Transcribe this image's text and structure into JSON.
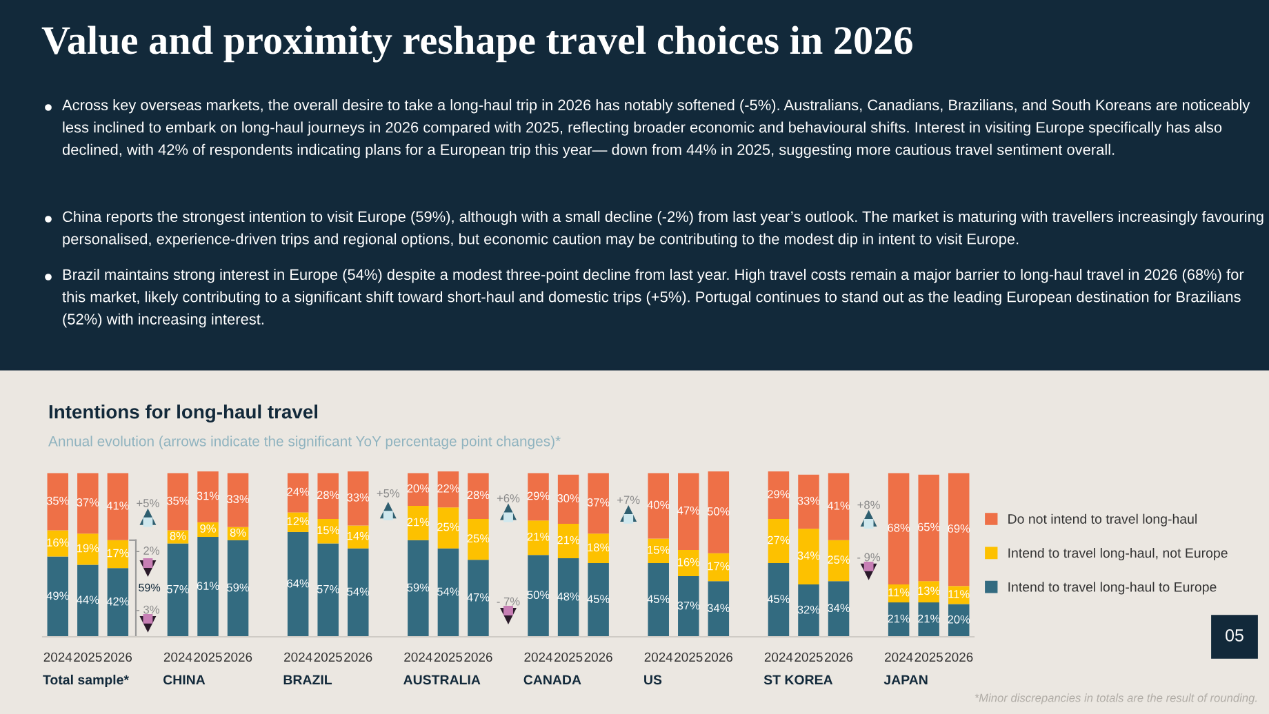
{
  "chart_data": {
    "type": "bar",
    "stacked": true,
    "title": "Value and proximity reshape travel choices in 2026",
    "subtitle": "Intentions for long-haul travel",
    "categories": [
      "2024",
      "2025",
      "2026",
      null,
      "2024",
      "2025",
      "2026",
      null,
      "2024",
      "2025",
      "2026",
      null,
      "2024",
      "2025",
      "2026",
      null,
      "2024",
      "2025",
      "2026",
      null,
      "2024",
      "2025",
      "2026",
      null,
      "2024",
      "2025",
      "2026",
      null,
      "2024",
      "2025",
      "2026"
    ],
    "series": [
      {
        "name": "Intend to travel long-haul to Europe",
        "color": "#336b80",
        "values": [
          49,
          44,
          42,
          null,
          57,
          61,
          59,
          null,
          64,
          57,
          54,
          null,
          59,
          54,
          47,
          null,
          50,
          48,
          45,
          null,
          45,
          37,
          34,
          null,
          45,
          32,
          34,
          null,
          21,
          21,
          20
        ],
        "value_labels": [
          "49%",
          "44%",
          "42%",
          null,
          "57%",
          "61%",
          "59%",
          null,
          "64%",
          "57%",
          "54%",
          null,
          "59%",
          "54%",
          "47%",
          null,
          "50%",
          "48%",
          "45%",
          null,
          "45%",
          "37%",
          "34%",
          null,
          "45%",
          "32%",
          "34%",
          null,
          "21%",
          "21%",
          "20%"
        ]
      },
      {
        "name": "Intend to travel long-haul, not Europe",
        "color": "#fdc100",
        "values": [
          16,
          19,
          17,
          null,
          8,
          9,
          8,
          null,
          12,
          15,
          14,
          null,
          21,
          25,
          25,
          null,
          21,
          21,
          18,
          null,
          15,
          16,
          17,
          null,
          27,
          34,
          25,
          null,
          11,
          13,
          11
        ],
        "value_labels": [
          "16%",
          "19%",
          "17%",
          null,
          "8%",
          "9%",
          "8%",
          null,
          "12%",
          "15%",
          "14%",
          null,
          "21%",
          "25%",
          "25%",
          null,
          "21%",
          "21%",
          "18%",
          null,
          "15%",
          "16%",
          "17%",
          null,
          "27%",
          "34%",
          "25%",
          null,
          "11%",
          "13%",
          "11%"
        ]
      },
      {
        "name": "Do not intend to travel long-haul",
        "color": "#ee7047",
        "values": [
          35,
          37,
          41,
          null,
          35,
          31,
          33,
          null,
          24,
          28,
          33,
          null,
          20,
          22,
          28,
          null,
          29,
          30,
          37,
          null,
          40,
          47,
          50,
          null,
          29,
          33,
          41,
          null,
          68,
          65,
          69
        ],
        "value_labels": [
          "35%",
          "37%",
          "41%",
          null,
          "35%",
          "31%",
          "33%",
          null,
          "24%",
          "28%",
          "33%",
          null,
          "20%",
          "22%",
          "28%",
          null,
          "29%",
          "30%",
          "37%",
          null,
          "40%",
          "47%",
          "50%",
          null,
          "29%",
          "33%",
          "41%",
          null,
          "68%",
          "65%",
          "69%"
        ]
      }
    ],
    "legend": "right",
    "grid": false,
    "annotations": [
      "Across key overseas markets, the overall desire to take a long-haul trip in 2026 has notably softened (-5%). Australians, Canadians, Brazilians, and South Koreans are noticeably less inclined to embark on long-haul journeys in 2026 compared with 2025, reflecting broader economic and behavioural shifts. Interest in visiting Europe specifically has also declined, with 42% of respondents indicating plans for a European trip this year— down from 44% in 2025, suggesting more cautious travel sentiment overall.",
      "China reports the strongest intention to visit Europe (59%), although with a small decline (-2%) from last year’s outlook. The market is maturing with travellers increasingly favouring personalised, experience-driven trips and regional options, but economic caution may be contributing to the modest dip in intent to visit Europe.",
      "Brazil maintains strong interest in Europe (54%) despite a modest three-point decline from last year. High travel costs remain a major barrier to long-haul travel in 2026 (68%) for this market, likely contributing to a significant shift toward short-haul and domestic trips (+5%). Portugal continues to stand out as the leading European destination for Brazilians (52%) with increasing interest.",
      "Annual evolution (arrows indicate the significant YoY percentage point changes)*",
      "Total sample*",
      "CHINA",
      "BRAZIL",
      "AUSTRALIA",
      "CANADA",
      "US",
      "ST KOREA",
      "JAPAN",
      "+5%",
      "- 2%",
      "59%",
      "- 3%",
      "+5%",
      "+6%",
      "- 7%",
      "+7%",
      "+8%",
      "- 9%",
      "*Minor discrepancies in totals are the result of rounding.",
      "05"
    ]
  }
}
